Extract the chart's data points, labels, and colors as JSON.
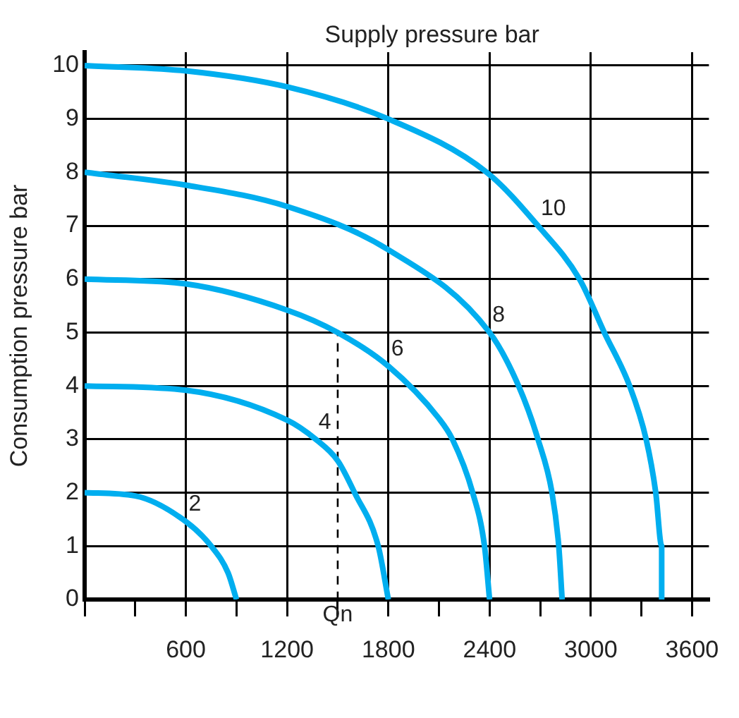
{
  "chart_data": {
    "type": "line",
    "title": "Supply pressure bar",
    "ylabel": "Consumption pressure bar",
    "xlim": [
      0,
      3700
    ],
    "ylim": [
      0,
      10.25
    ],
    "xticks": [
      {
        "value": 0,
        "label": null
      },
      {
        "value": 300,
        "label": null
      },
      600,
      {
        "value": 900,
        "label": null
      },
      1200,
      {
        "value": 1500,
        "label": null
      },
      1800,
      {
        "value": 2100,
        "label": null
      },
      2400,
      {
        "value": 2700,
        "label": null
      },
      3000,
      {
        "value": 3300,
        "label": null
      },
      3600
    ],
    "yticks": [
      0,
      1,
      2,
      3,
      4,
      5,
      6,
      7,
      8,
      9,
      10
    ],
    "grid": true,
    "legend": false,
    "marker": "none",
    "series": [
      {
        "name": "2",
        "color": "#00aeef",
        "x": [
          0,
          300,
          600,
          750,
          850,
          900
        ],
        "values": [
          2,
          1.94,
          1.46,
          1,
          0.5,
          0
        ]
      },
      {
        "name": "4",
        "color": "#00aeef",
        "x": [
          0,
          600,
          1200,
          1370,
          1500,
          1600,
          1740,
          1800
        ],
        "values": [
          4,
          3.92,
          3.36,
          3,
          2.6,
          2,
          1,
          0
        ]
      },
      {
        "name": "6",
        "color": "#00aeef",
        "x": [
          0,
          600,
          1200,
          1500,
          1800,
          2100,
          2180,
          2300,
          2370,
          2400
        ],
        "values": [
          6,
          5.91,
          5.42,
          5,
          4.37,
          3.39,
          3,
          2,
          1,
          0
        ]
      },
      {
        "name": "8",
        "color": "#00aeef",
        "x": [
          0,
          600,
          1200,
          1800,
          2400,
          2572,
          2687,
          2770,
          2810,
          2830
        ],
        "values": [
          8,
          7.76,
          7.36,
          6.55,
          5,
          4,
          3,
          2,
          1,
          0
        ]
      },
      {
        "name": "10",
        "color": "#00aeef",
        "x": [
          0,
          600,
          1200,
          1800,
          2383,
          2687,
          2933,
          3080,
          3230,
          3328,
          3385,
          3420,
          3420
        ],
        "values": [
          10,
          9.9,
          9.6,
          9,
          8,
          7,
          6,
          5,
          4,
          3,
          2,
          1,
          0
        ]
      },
      {
        "color": "#000000",
        "line_style": "dashed",
        "x": [
          0,
          1500,
          1500
        ],
        "values": [
          5,
          5,
          0
        ]
      }
    ],
    "annotations": [
      {
        "text": "Qn",
        "x": 1500,
        "y": 0
      }
    ]
  }
}
